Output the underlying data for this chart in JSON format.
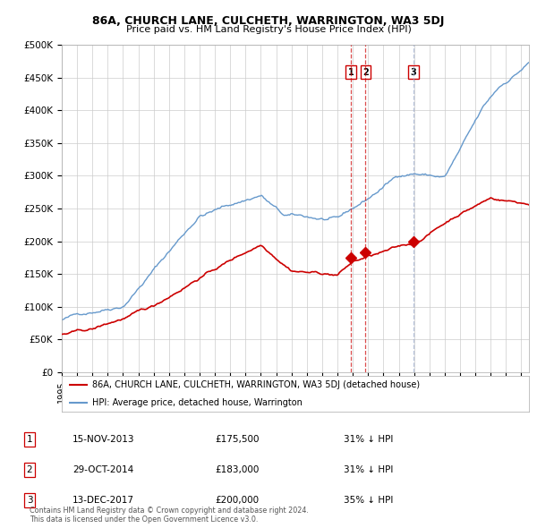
{
  "title": "86A, CHURCH LANE, CULCHETH, WARRINGTON, WA3 5DJ",
  "subtitle": "Price paid vs. HM Land Registry's House Price Index (HPI)",
  "red_label": "86A, CHURCH LANE, CULCHETH, WARRINGTON, WA3 5DJ (detached house)",
  "blue_label": "HPI: Average price, detached house, Warrington",
  "sale_points": [
    {
      "label": "1",
      "date": "2013-11-15",
      "price": 175500,
      "x": 2013.872
    },
    {
      "label": "2",
      "date": "2014-10-29",
      "price": 183000,
      "x": 2014.829
    },
    {
      "label": "3",
      "date": "2017-12-13",
      "price": 200000,
      "x": 2017.948
    }
  ],
  "sale_rows": [
    {
      "num": "1",
      "date": "15-NOV-2013",
      "price": "£175,500",
      "pct": "31% ↓ HPI"
    },
    {
      "num": "2",
      "date": "29-OCT-2014",
      "price": "£183,000",
      "pct": "31% ↓ HPI"
    },
    {
      "num": "3",
      "date": "13-DEC-2017",
      "price": "£200,000",
      "pct": "35% ↓ HPI"
    }
  ],
  "footer": "Contains HM Land Registry data © Crown copyright and database right 2024.\nThis data is licensed under the Open Government Licence v3.0.",
  "red_color": "#cc0000",
  "blue_color": "#6699cc",
  "plot_bg": "#ffffff",
  "ylim": [
    0,
    500000
  ],
  "xlim": [
    1995,
    2025.5
  ],
  "yticks": [
    0,
    50000,
    100000,
    150000,
    200000,
    250000,
    300000,
    350000,
    400000,
    450000,
    500000
  ],
  "ytick_labels": [
    "£0",
    "£50K",
    "£100K",
    "£150K",
    "£200K",
    "£250K",
    "£300K",
    "£350K",
    "£400K",
    "£450K",
    "£500K"
  ]
}
